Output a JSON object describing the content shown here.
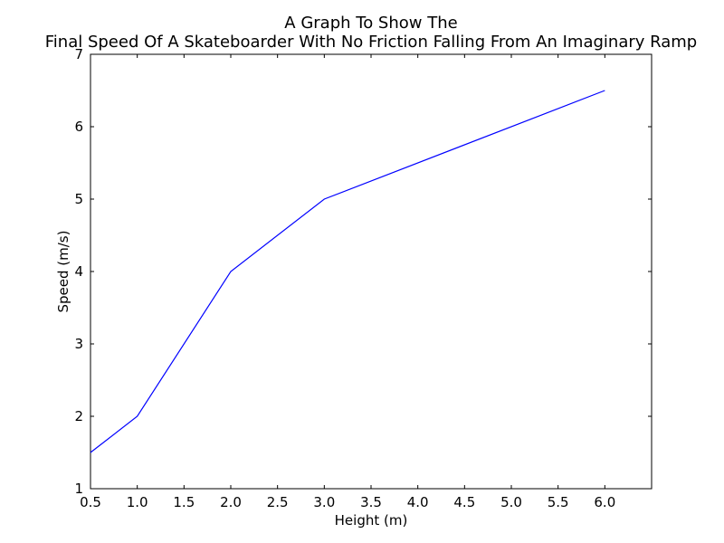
{
  "chart_data": {
    "type": "line",
    "title_line1": "A Graph To Show The",
    "title_line2": "Final Speed Of A Skateboarder With No Friction Falling From An Imaginary Ramp",
    "xlabel": "Height (m)",
    "ylabel": "Speed (m/s)",
    "xlim": [
      0.5,
      6.5
    ],
    "ylim": [
      1,
      7
    ],
    "xticks": [
      0.5,
      1.0,
      1.5,
      2.0,
      2.5,
      3.0,
      3.5,
      4.0,
      4.5,
      5.0,
      5.5,
      6.0
    ],
    "xtick_labels": [
      "0.5",
      "1.0",
      "1.5",
      "2.0",
      "2.5",
      "3.0",
      "3.5",
      "4.0",
      "4.5",
      "5.0",
      "5.5",
      "6.0"
    ],
    "yticks": [
      1,
      2,
      3,
      4,
      5,
      6,
      7
    ],
    "ytick_labels": [
      "1",
      "2",
      "3",
      "4",
      "5",
      "6",
      "7"
    ],
    "grid": false,
    "series": [
      {
        "x": [
          0.5,
          1.0,
          2.0,
          3.0,
          6.0
        ],
        "y": [
          1.5,
          2.0,
          4.0,
          5.0,
          6.5
        ],
        "color": "#0000ff"
      }
    ]
  }
}
